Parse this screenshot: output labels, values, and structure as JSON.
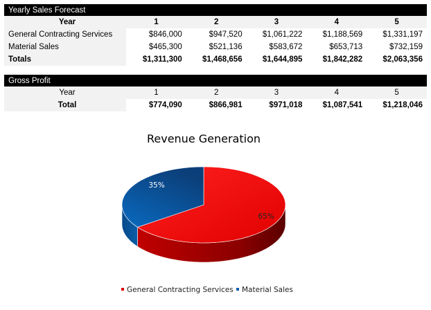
{
  "sales": {
    "title": "Yearly Sales Forecast",
    "year_label": "Year",
    "years": [
      "1",
      "2",
      "3",
      "4",
      "5"
    ],
    "rows": [
      {
        "label": "General Contracting Services",
        "values": [
          "$846,000",
          "$947,520",
          "$1,061,222",
          "$1,188,569",
          "$1,331,197"
        ]
      },
      {
        "label": "Material Sales",
        "values": [
          "$465,300",
          "$521,136",
          "$583,672",
          "$653,713",
          "$732,159"
        ]
      }
    ],
    "totals": {
      "label": "Totals",
      "values": [
        "$1,311,300",
        "$1,468,656",
        "$1,644,895",
        "$1,842,282",
        "$2,063,356"
      ]
    }
  },
  "profit": {
    "title": "Gross Profit",
    "year_label": "Year",
    "years": [
      "1",
      "2",
      "3",
      "4",
      "5"
    ],
    "total": {
      "label": "Total",
      "values": [
        "$774,090",
        "$866,981",
        "$971,018",
        "$1,087,541",
        "$1,218,046"
      ]
    }
  },
  "chart_data": {
    "type": "pie",
    "style": "3d",
    "title": "Revenue Generation",
    "categories": [
      "General Contracting Services",
      "Material Sales"
    ],
    "values": [
      65,
      35
    ],
    "labels": [
      "65%",
      "35%"
    ],
    "colors": [
      "#e00000",
      "#0a5ea8"
    ],
    "legend": "bottom"
  }
}
